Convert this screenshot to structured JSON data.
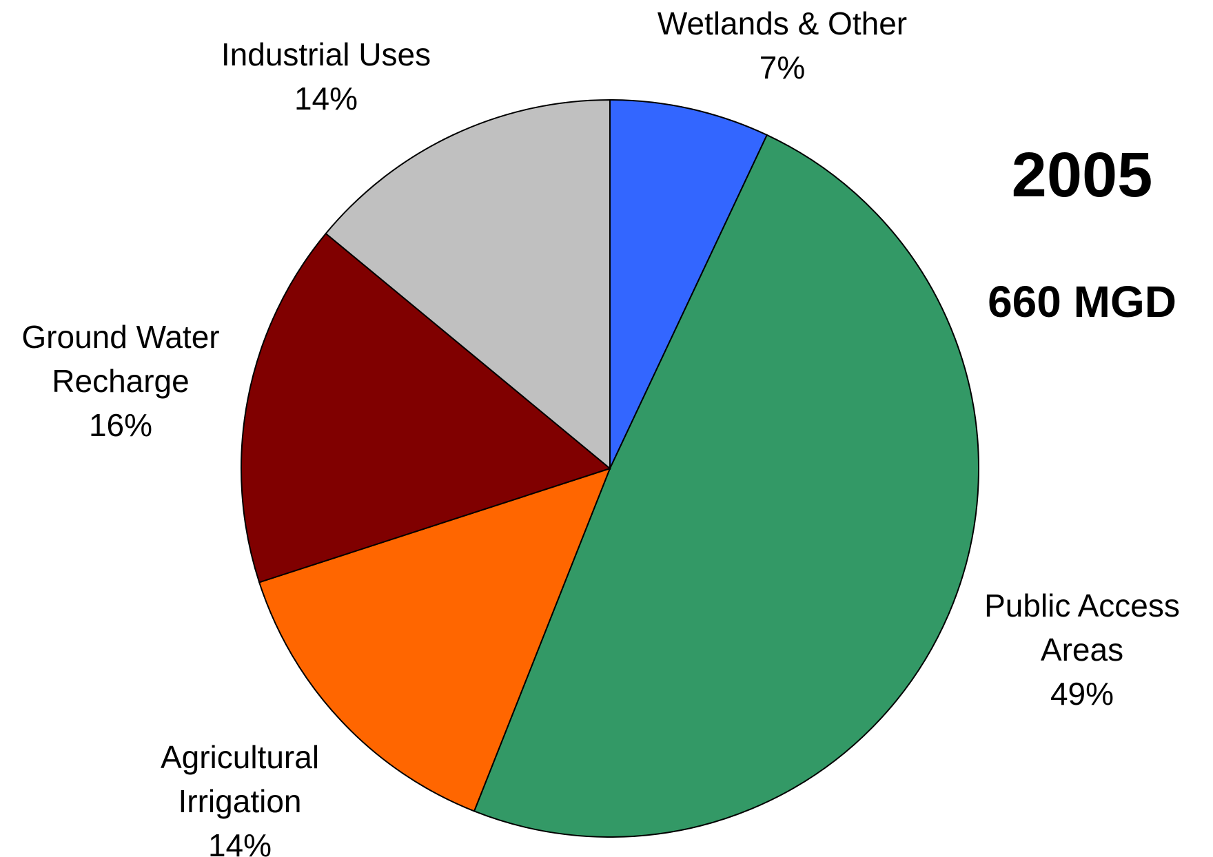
{
  "chart_data": {
    "type": "pie",
    "year": "2005",
    "total": "660 MGD",
    "start_angle_deg": 0,
    "direction": "clockwise",
    "slices": [
      {
        "label": [
          "Wetlands & Other"
        ],
        "percent_label": "7%",
        "value": 7,
        "color": "#3366FF"
      },
      {
        "label": [
          "Public Access",
          "Areas"
        ],
        "percent_label": "49%",
        "value": 49,
        "color": "#339966"
      },
      {
        "label": [
          "Agricultural",
          "Irrigation"
        ],
        "percent_label": "14%",
        "value": 14,
        "color": "#FF6600"
      },
      {
        "label": [
          "Ground Water",
          "Recharge"
        ],
        "percent_label": "16%",
        "value": 16,
        "color": "#800000"
      },
      {
        "label": [
          "Industrial Uses"
        ],
        "percent_label": "14%",
        "value": 14,
        "color": "#C0C0C0"
      }
    ]
  }
}
